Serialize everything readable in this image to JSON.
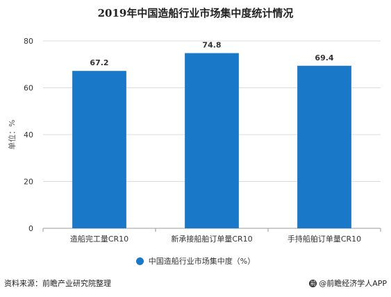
{
  "title": "2019年中国造船行业市场集中度统计情况",
  "colors": {
    "bar": "#1a78c8",
    "grid": "#dddddd",
    "axis": "#999999"
  },
  "chart_data": {
    "type": "bar",
    "title": "2019年中国造船行业市场集中度统计情况",
    "ylabel": "单位：%",
    "xlabel": "",
    "ylim": [
      0,
      80
    ],
    "yticks": [
      0,
      20,
      40,
      60,
      80
    ],
    "categories": [
      "造船完工量CR10",
      "新承接船舶订单量CR10",
      "手持船舶订单量CR10"
    ],
    "series": [
      {
        "name": "中国造船行业市场集中度（%）",
        "values": [
          67.2,
          74.8,
          69.4
        ]
      }
    ],
    "grid": true,
    "legend": "bottom"
  },
  "legend_label": "中国造船行业市场集中度（%）",
  "source": "资料来源：前瞻产业研究院整理",
  "brand": "@前瞻经济学人APP",
  "watermark": "前瞻产业研究院"
}
